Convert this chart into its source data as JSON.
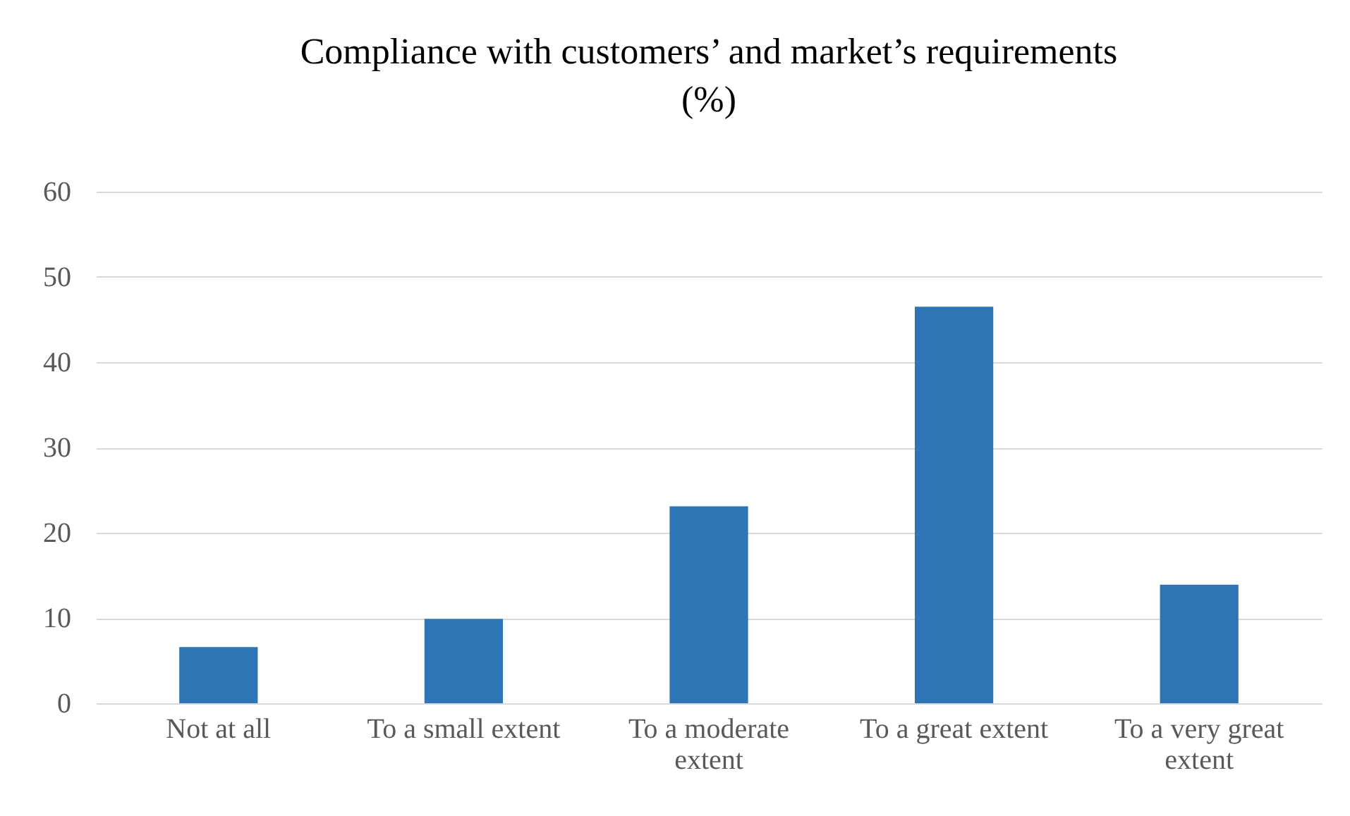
{
  "chart_data": {
    "type": "bar",
    "title": "Compliance with customers’ and market’s requirements\n(%)",
    "categories": [
      "Not at all",
      "To a small extent",
      "To a moderate extent",
      "To a great extent",
      "To a very great extent"
    ],
    "values": [
      6.6,
      9.9,
      23.1,
      46.5,
      13.9
    ],
    "color": "#2e75b6",
    "ylim": [
      0,
      60
    ],
    "yticks": [
      0,
      10,
      20,
      30,
      40,
      50,
      60
    ],
    "grid": "y"
  }
}
